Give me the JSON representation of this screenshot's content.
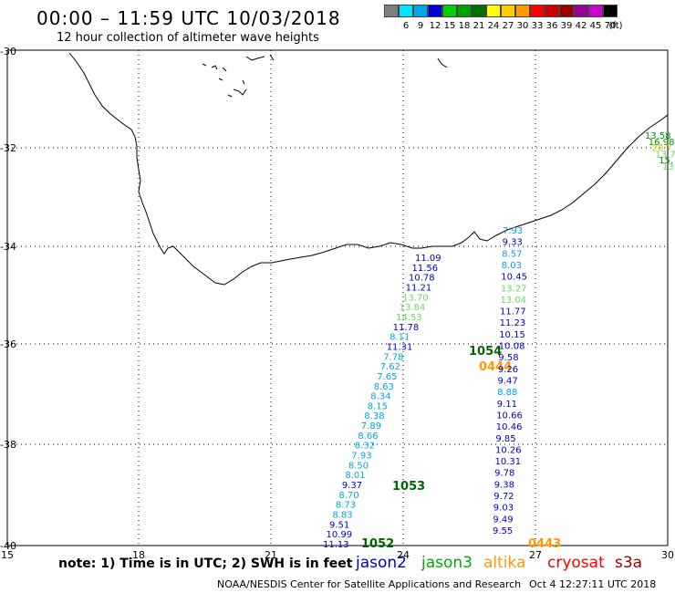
{
  "header": {
    "title": "00:00 – 11:59 UTC 10/03/2018",
    "subtitle": "12 hour collection of altimeter wave heights"
  },
  "colorbar": {
    "unit_label": "(ft)",
    "bins": [
      {
        "label": "3",
        "color": "#7f7f7f"
      },
      {
        "label": "6",
        "color": "#00e5ff"
      },
      {
        "label": "9",
        "color": "#00a6e6"
      },
      {
        "label": "12",
        "color": "#0000cc"
      },
      {
        "label": "15",
        "color": "#00d000"
      },
      {
        "label": "18",
        "color": "#00a000"
      },
      {
        "label": "21",
        "color": "#007000"
      },
      {
        "label": "24",
        "color": "#ffff00"
      },
      {
        "label": "27",
        "color": "#ffcc00"
      },
      {
        "label": "30",
        "color": "#ff9900"
      },
      {
        "label": "33",
        "color": "#ff0000"
      },
      {
        "label": "36",
        "color": "#cc0000"
      },
      {
        "label": "39",
        "color": "#990000"
      },
      {
        "label": "42",
        "color": "#990099"
      },
      {
        "label": "45",
        "color": "#cc00cc"
      },
      {
        "label": "70",
        "color": "#000000"
      }
    ]
  },
  "axes": {
    "lon_labels": [
      "15",
      "18",
      "21",
      "24",
      "27",
      "30"
    ],
    "lat_labels": [
      "-30",
      "-32",
      "-34",
      "-36",
      "-38",
      "-40"
    ]
  },
  "track_labels": [
    {
      "text": "1054",
      "color": "#006600"
    },
    {
      "text": "0444",
      "color": "#ff9900"
    },
    {
      "text": "1053",
      "color": "#006600"
    },
    {
      "text": "1052",
      "color": "#006600"
    },
    {
      "text": "0443",
      "color": "#ff9900"
    }
  ],
  "readings_right": [
    {
      "text": "7.93",
      "color": "#00a6e6"
    },
    {
      "text": "9.33",
      "color": "#0000cc"
    },
    {
      "text": "8.57",
      "color": "#00a6e6"
    },
    {
      "text": "8.03",
      "color": "#00a6e6"
    },
    {
      "text": "10.45",
      "color": "#0000cc"
    },
    {
      "text": "13.27",
      "color": "#66dd66"
    },
    {
      "text": "13.04",
      "color": "#66dd66"
    },
    {
      "text": "11.77",
      "color": "#0000cc"
    },
    {
      "text": "11.23",
      "color": "#0000cc"
    },
    {
      "text": "10.15",
      "color": "#0000cc"
    },
    {
      "text": "10.08",
      "color": "#0000cc"
    },
    {
      "text": "9.58",
      "color": "#0000cc"
    },
    {
      "text": "9.26",
      "color": "#0000cc"
    },
    {
      "text": "9.47",
      "color": "#0000cc"
    },
    {
      "text": "8.88",
      "color": "#00a6e6"
    },
    {
      "text": "9.11",
      "color": "#0000cc"
    },
    {
      "text": "10.66",
      "color": "#0000cc"
    },
    {
      "text": "10.46",
      "color": "#0000cc"
    },
    {
      "text": "9.85",
      "color": "#0000cc"
    },
    {
      "text": "10.26",
      "color": "#0000cc"
    },
    {
      "text": "10.31",
      "color": "#0000cc"
    },
    {
      "text": "9.78",
      "color": "#0000cc"
    },
    {
      "text": "9.38",
      "color": "#0000cc"
    },
    {
      "text": "9.72",
      "color": "#0000cc"
    },
    {
      "text": "9.03",
      "color": "#0000cc"
    },
    {
      "text": "9.49",
      "color": "#0000cc"
    },
    {
      "text": "9.55",
      "color": "#0000cc"
    }
  ],
  "readings_left": [
    {
      "text": "11.09",
      "color": "#0000cc"
    },
    {
      "text": "11.56",
      "color": "#0000cc"
    },
    {
      "text": "10.78",
      "color": "#0000cc"
    },
    {
      "text": "11.21",
      "color": "#0000cc"
    },
    {
      "text": "13.70",
      "color": "#66dd66"
    },
    {
      "text": "13.84",
      "color": "#66dd66"
    },
    {
      "text": "14.53",
      "color": "#66dd66"
    },
    {
      "text": "11.78",
      "color": "#0000cc"
    },
    {
      "text": "8.11",
      "color": "#00a6e6"
    },
    {
      "text": "11.31",
      "color": "#0000cc"
    },
    {
      "text": "7.78",
      "color": "#00a6e6"
    },
    {
      "text": "7.62",
      "color": "#00a6e6"
    },
    {
      "text": "7.65",
      "color": "#00a6e6"
    },
    {
      "text": "8.63",
      "color": "#00a6e6"
    },
    {
      "text": "8.34",
      "color": "#00a6e6"
    },
    {
      "text": "8.15",
      "color": "#00a6e6"
    },
    {
      "text": "8.38",
      "color": "#00a6e6"
    },
    {
      "text": "7.89",
      "color": "#00a6e6"
    },
    {
      "text": "8.66",
      "color": "#00a6e6"
    },
    {
      "text": "8.32",
      "color": "#00a6e6"
    },
    {
      "text": "7.93",
      "color": "#00a6e6"
    },
    {
      "text": "8.50",
      "color": "#00a6e6"
    },
    {
      "text": "8.01",
      "color": "#00a6e6"
    },
    {
      "text": "9.37",
      "color": "#0000cc"
    },
    {
      "text": "8.70",
      "color": "#00a6e6"
    },
    {
      "text": "8.73",
      "color": "#00a6e6"
    },
    {
      "text": "8.83",
      "color": "#00a6e6"
    },
    {
      "text": "9.51",
      "color": "#0000cc"
    },
    {
      "text": "10.99",
      "color": "#0000cc"
    },
    {
      "text": "11.13",
      "color": "#0000cc"
    }
  ],
  "readings_corner": [
    {
      "text": "13.58",
      "color": "#009900"
    },
    {
      "text": "16.98",
      "color": "#009900"
    },
    {
      "text": "20.7",
      "color": "#cccc00"
    },
    {
      "text": "13.7",
      "color": "#66dd66"
    },
    {
      "text": "15.",
      "color": "#009900"
    },
    {
      "text": "13",
      "color": "#66dd66"
    }
  ],
  "note": "note: 1) Time is in UTC; 2) SWH is in feet",
  "legend": [
    {
      "name": "jason2",
      "color": "#0000cc"
    },
    {
      "name": "jason3",
      "color": "#00aa00"
    },
    {
      "name": "altika",
      "color": "#ff9900"
    },
    {
      "name": "cryosat",
      "color": "#ff0000"
    },
    {
      "name": "s3a",
      "color": "#990000"
    }
  ],
  "footer": {
    "credit": "NOAA/NESDIS Center for Satellite Applications and Research",
    "timestamp": "Oct  4 12:27:11 UTC 2018"
  }
}
